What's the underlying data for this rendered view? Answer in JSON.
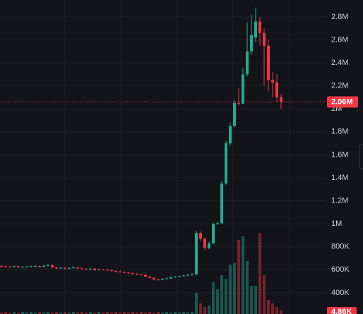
{
  "chart_data": {
    "type": "candlestick",
    "up_color": "#22ab94",
    "down_color": "#f23645",
    "grid": true,
    "ylim": [
      215000,
      2947000
    ],
    "yticks": [
      {
        "value": 400000,
        "label": "400K"
      },
      {
        "value": 600000,
        "label": "600K"
      },
      {
        "value": 800000,
        "label": "800K"
      },
      {
        "value": 1000000,
        "label": "1M"
      },
      {
        "value": 1200000,
        "label": "1.2M"
      },
      {
        "value": 1400000,
        "label": "1.4M"
      },
      {
        "value": 1600000,
        "label": "1.6M"
      },
      {
        "value": 1800000,
        "label": "1.8M"
      },
      {
        "value": 2000000,
        "label": "2M"
      },
      {
        "value": 2200000,
        "label": "2.2M"
      },
      {
        "value": 2400000,
        "label": "2.4M"
      },
      {
        "value": 2600000,
        "label": "2.6M"
      },
      {
        "value": 2800000,
        "label": "2.8M"
      }
    ],
    "last_price": {
      "value": 2060000,
      "label": "2.06M"
    },
    "last_volume": {
      "value": 4860,
      "label": "4.86K"
    },
    "volume_lim": [
      0,
      120000
    ],
    "open": [
      632000,
      630000,
      628000,
      625000,
      630000,
      622000,
      626000,
      628000,
      630000,
      632000,
      626000,
      634000,
      640000,
      620000,
      612000,
      618000,
      610000,
      615000,
      620000,
      612000,
      608000,
      605000,
      610000,
      598000,
      602000,
      600000,
      596000,
      590000,
      585000,
      580000,
      575000,
      570000,
      565000,
      560000,
      555000,
      540000,
      530000,
      515000,
      512000,
      520000,
      525000,
      535000,
      540000,
      545000,
      550000,
      555000,
      560000,
      920000,
      870000,
      790000,
      830000,
      1000000,
      1005000,
      1350000,
      1700000,
      1850000,
      2050000,
      2045000,
      2300000,
      2500000,
      2620000,
      2760000,
      2660000,
      2550000,
      2250000,
      2230000,
      2100000
    ],
    "high": [
      640000,
      636000,
      634000,
      638000,
      636000,
      632000,
      634000,
      638000,
      640000,
      638000,
      642000,
      650000,
      646000,
      626000,
      624000,
      622000,
      622000,
      628000,
      626000,
      618000,
      614000,
      618000,
      616000,
      610000,
      608000,
      606000,
      602000,
      596000,
      592000,
      586000,
      580000,
      576000,
      570000,
      566000,
      560000,
      546000,
      536000,
      520000,
      526000,
      530000,
      540000,
      546000,
      550000,
      556000,
      560000,
      570000,
      940000,
      935000,
      880000,
      845000,
      1010000,
      1020000,
      1370000,
      1720000,
      1880000,
      2080000,
      2180000,
      2360000,
      2750000,
      2820000,
      2880000,
      2800000,
      2700000,
      2600000,
      2320000,
      2300000,
      2130000
    ],
    "low": [
      622000,
      620000,
      618000,
      618000,
      615000,
      616000,
      620000,
      622000,
      624000,
      618000,
      620000,
      628000,
      612000,
      604000,
      606000,
      602000,
      604000,
      608000,
      604000,
      600000,
      598000,
      598000,
      590000,
      592000,
      594000,
      588000,
      584000,
      578000,
      574000,
      568000,
      562000,
      558000,
      552000,
      548000,
      534000,
      524000,
      508000,
      506000,
      506000,
      514000,
      520000,
      530000,
      534000,
      540000,
      544000,
      548000,
      555000,
      850000,
      770000,
      780000,
      825000,
      990000,
      1000000,
      1340000,
      1680000,
      1840000,
      2030000,
      2040000,
      2280000,
      2470000,
      2580000,
      2550000,
      2200000,
      2150000,
      2100000,
      2060000,
      2000000
    ],
    "close": [
      630000,
      628000,
      625000,
      630000,
      622000,
      626000,
      628000,
      630000,
      632000,
      626000,
      634000,
      640000,
      620000,
      612000,
      618000,
      610000,
      615000,
      620000,
      612000,
      608000,
      605000,
      610000,
      598000,
      602000,
      600000,
      596000,
      590000,
      585000,
      580000,
      575000,
      570000,
      565000,
      560000,
      555000,
      540000,
      530000,
      515000,
      512000,
      520000,
      525000,
      535000,
      540000,
      545000,
      550000,
      555000,
      560000,
      920000,
      870000,
      790000,
      830000,
      1000000,
      1005000,
      1350000,
      1700000,
      1850000,
      2050000,
      2045000,
      2300000,
      2500000,
      2640000,
      2760000,
      2660000,
      2550000,
      2250000,
      2230000,
      2100000,
      2060000
    ],
    "volume": [
      2000,
      3000,
      2000,
      3000,
      2000,
      3000,
      2000,
      3000,
      2000,
      3000,
      2000,
      3000,
      2000,
      3000,
      2000,
      3000,
      2000,
      3000,
      2000,
      3000,
      2000,
      3000,
      2000,
      3000,
      2000,
      3000,
      2000,
      3000,
      2000,
      3000,
      2000,
      3000,
      2000,
      3000,
      2000,
      3000,
      2000,
      3000,
      2000,
      3000,
      2000,
      3000,
      2000,
      3000,
      2000,
      3000,
      30000,
      15000,
      10000,
      12000,
      45000,
      35000,
      55000,
      50000,
      70000,
      72000,
      105000,
      110000,
      75000,
      40000,
      40000,
      115000,
      55000,
      20000,
      15000,
      10000,
      4860
    ]
  }
}
